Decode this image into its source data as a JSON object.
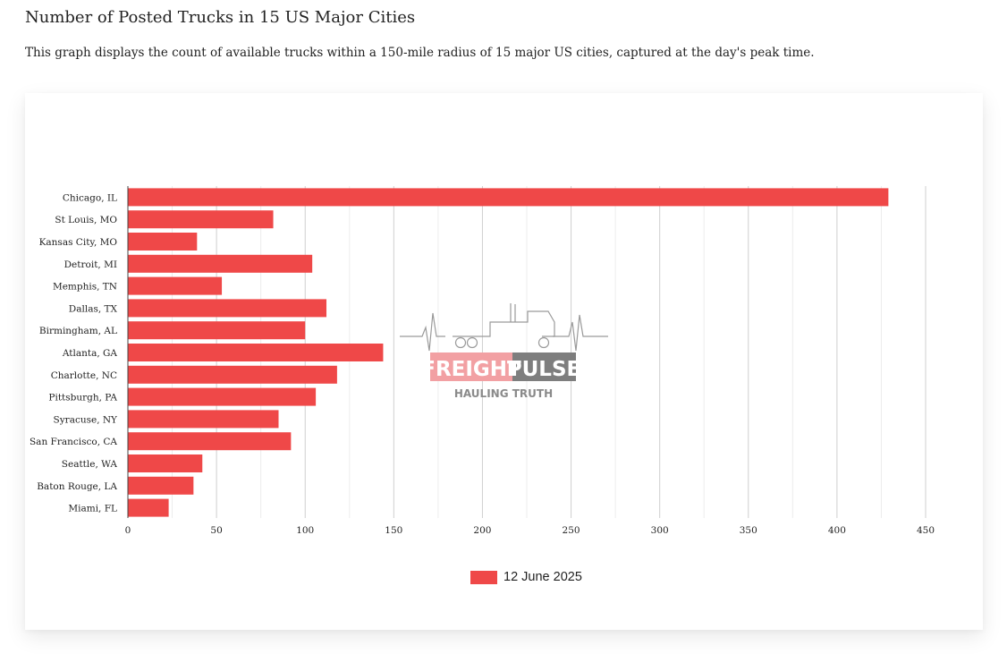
{
  "header": {
    "title": "Number of Posted Trucks in 15 US Major Cities",
    "subtitle": "This graph displays the count of available trucks within a 150-mile radius of 15 major US cities, captured at the day's peak time."
  },
  "watermark": {
    "brand_left": "FREIGHT",
    "brand_right": "PULSE",
    "tagline": "HAULING TRUTH",
    "icon": "truck-heartbeat-icon"
  },
  "chart_data": {
    "type": "bar",
    "orientation": "horizontal",
    "categories": [
      "Chicago, IL",
      "St Louis, MO",
      "Kansas City, MO",
      "Detroit, MI",
      "Memphis, TN",
      "Dallas, TX",
      "Birmingham, AL",
      "Atlanta, GA",
      "Charlotte, NC",
      "Pittsburgh, PA",
      "Syracuse, NY",
      "San Francisco, CA",
      "Seattle, WA",
      "Baton Rouge, LA",
      "Miami, FL"
    ],
    "series": [
      {
        "name": "12 June 2025",
        "color": "#ef4848",
        "values": [
          429,
          82,
          39,
          104,
          53,
          112,
          100,
          144,
          118,
          106,
          85,
          92,
          42,
          37,
          23
        ]
      }
    ],
    "xlim": [
      0,
      450
    ],
    "xticks": [
      0,
      50,
      100,
      150,
      200,
      250,
      300,
      350,
      400,
      450
    ],
    "grid": true,
    "legend_position": "bottom"
  }
}
